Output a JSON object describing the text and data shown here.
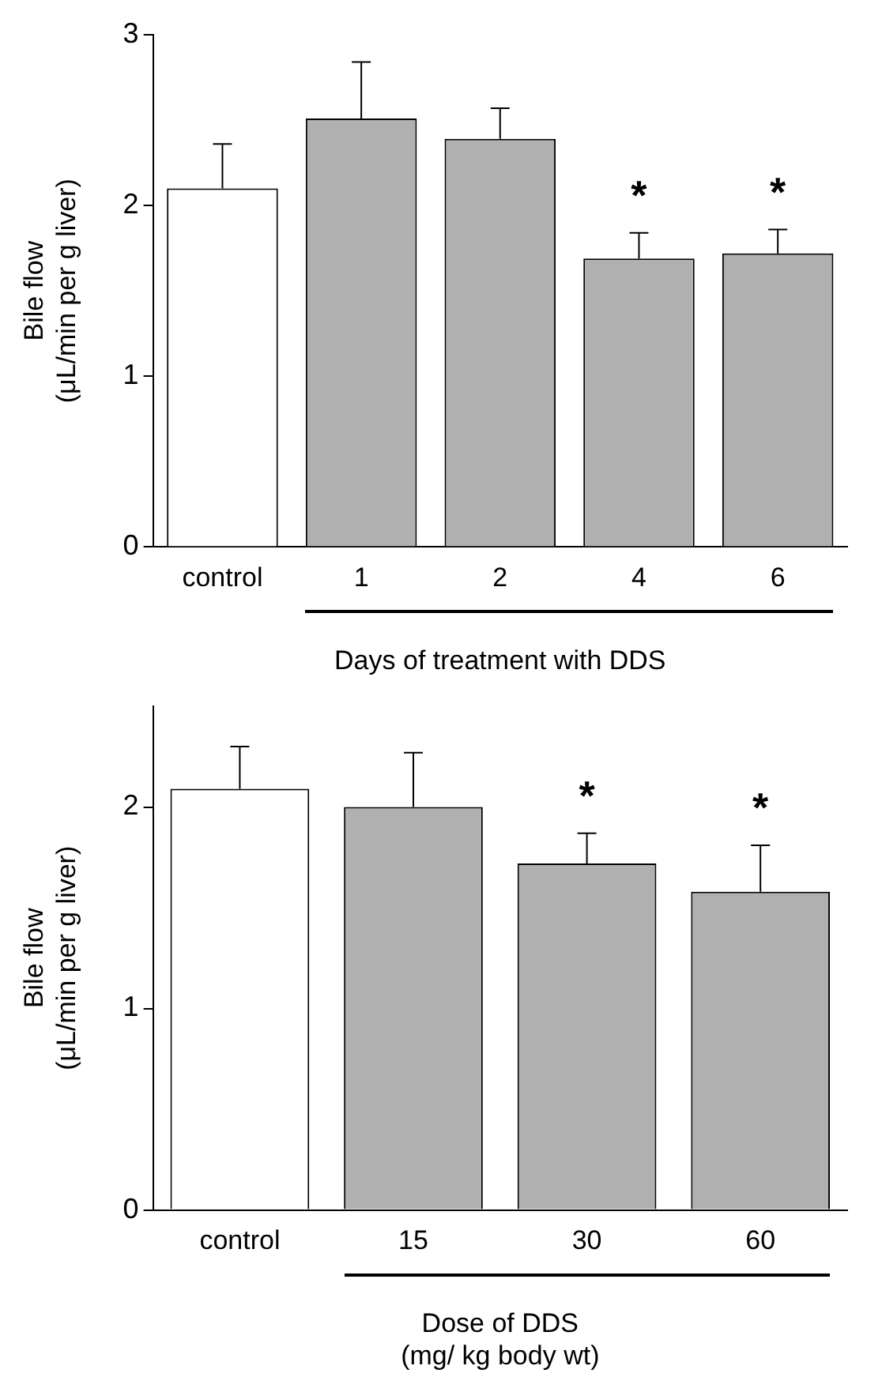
{
  "chart_data": [
    {
      "type": "bar",
      "categories": [
        "control",
        "1",
        "2",
        "4",
        "6"
      ],
      "values": [
        2.1,
        2.51,
        2.39,
        1.69,
        1.72
      ],
      "errors": [
        0.26,
        0.33,
        0.18,
        0.15,
        0.14
      ],
      "colors": [
        "#ffffff",
        "#b0b0b0",
        "#b0b0b0",
        "#b0b0b0",
        "#b0b0b0"
      ],
      "ylabel": "Bile flow\n(μL/min per g liver)",
      "xlabel": "Days of treatment with DDS",
      "ylim": [
        0,
        3
      ],
      "yticks": [
        0,
        1,
        2,
        3
      ],
      "grid": false,
      "value_labels": [
        null,
        null,
        null,
        "*",
        "*"
      ]
    },
    {
      "type": "bar",
      "categories": [
        "control",
        "15",
        "30",
        "60"
      ],
      "values": [
        2.09,
        2.0,
        1.72,
        1.58
      ],
      "errors": [
        0.21,
        0.27,
        0.15,
        0.23
      ],
      "colors": [
        "#ffffff",
        "#b0b0b0",
        "#b0b0b0",
        "#b0b0b0"
      ],
      "ylabel": "Bile flow\n(μL/min per g liver)",
      "xlabel": "Dose of DDS\n(mg/ kg body wt)",
      "ylim": [
        0,
        2.5
      ],
      "yticks": [
        0,
        1,
        2
      ],
      "grid": false,
      "value_labels": [
        null,
        null,
        "*",
        "*"
      ]
    }
  ]
}
